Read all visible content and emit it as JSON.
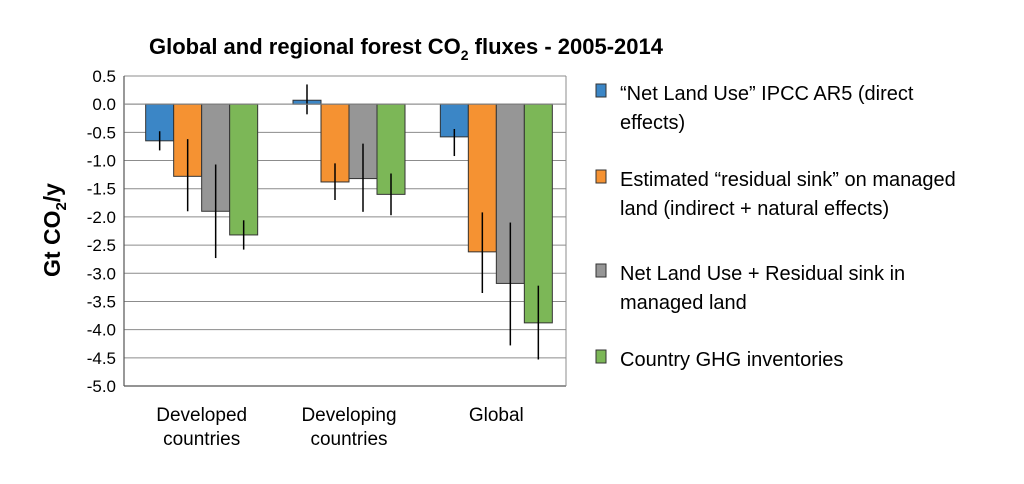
{
  "chart_data": {
    "type": "bar",
    "title": {
      "pre": "Global and regional forest CO",
      "sub": "2",
      "post": " fluxes - 2005-2014"
    },
    "ylabel": {
      "pre": "Gt CO",
      "sub": "2",
      "post": "/y"
    },
    "xlabel": "",
    "ylim": [
      -5.0,
      0.5
    ],
    "yticks": [
      "0.5",
      "0.0",
      "-0.5",
      "-1.0",
      "-1.5",
      "-2.0",
      "-2.5",
      "-3.0",
      "-3.5",
      "-4.0",
      "-4.5",
      "-5.0"
    ],
    "ytick_values": [
      0.5,
      0.0,
      -0.5,
      -1.0,
      -1.5,
      -2.0,
      -2.5,
      -3.0,
      -3.5,
      -4.0,
      -4.5,
      -5.0
    ],
    "grid": true,
    "legend_position": "right",
    "categories": [
      [
        "Developed",
        "countries"
      ],
      [
        "Developing",
        "countries"
      ],
      [
        "Global"
      ]
    ],
    "series": [
      {
        "name": [
          "“Net Land Use” IPCC AR5 (direct",
          "effects)"
        ],
        "color": "#3b86c6",
        "values": [
          -0.65,
          0.07,
          -0.58
        ],
        "error_low": [
          -0.82,
          -0.18,
          -0.92
        ],
        "error_high": [
          -0.48,
          0.35,
          -0.44
        ]
      },
      {
        "name": [
          "Estimated “residual sink” on managed",
          "land (indirect + natural effects)"
        ],
        "color": "#f59232",
        "values": [
          -1.28,
          -1.38,
          -2.62
        ],
        "error_low": [
          -1.9,
          -1.7,
          -3.35
        ],
        "error_high": [
          -0.62,
          -1.05,
          -1.92
        ]
      },
      {
        "name": [
          "Net Land Use + Residual sink in",
          "managed land"
        ],
        "color": "#969696",
        "values": [
          -1.9,
          -1.32,
          -3.18
        ],
        "error_low": [
          -2.73,
          -1.91,
          -4.28
        ],
        "error_high": [
          -1.07,
          -0.7,
          -2.1
        ]
      },
      {
        "name": [
          "Country GHG inventories"
        ],
        "color": "#7cb757",
        "values": [
          -2.32,
          -1.6,
          -3.88
        ],
        "error_low": [
          -2.58,
          -1.97,
          -4.53
        ],
        "error_high": [
          -2.06,
          -1.23,
          -3.22
        ]
      }
    ]
  }
}
